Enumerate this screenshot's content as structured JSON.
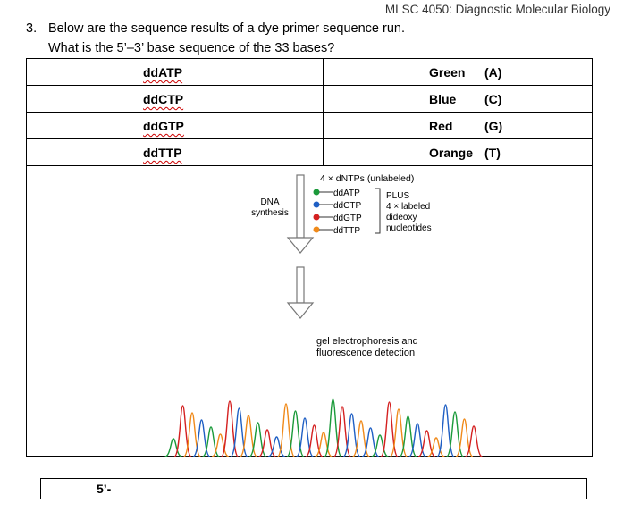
{
  "header": "MLSC 4050: Diagnostic Molecular Biology",
  "question": {
    "number": "3.",
    "line1": "Below are the sequence results of a dye primer sequence run.",
    "line2": "What is the 5’–3’ base sequence of the 33 bases?"
  },
  "table": {
    "rows": [
      {
        "nucleotide": "ddATP",
        "color": "Green",
        "base": "(A)"
      },
      {
        "nucleotide": "ddCTP",
        "color": "Blue",
        "base": "(C)"
      },
      {
        "nucleotide": "ddGTP",
        "color": "Red",
        "base": "(G)"
      },
      {
        "nucleotide": "ddTTP",
        "color": "Orange",
        "base": "(T)"
      }
    ]
  },
  "figure": {
    "dntps": "4 × dNTPs (unlabeled)",
    "dna_synthesis_1": "DNA",
    "dna_synthesis_2": "synthesis",
    "dd_labels": [
      "ddATP",
      "ddCTP",
      "ddGTP",
      "ddTTP"
    ],
    "plus_1": "PLUS",
    "plus_2": "4 × labeled",
    "plus_3": "dideoxy",
    "plus_4": "nucleotides",
    "gel_1": "gel electrophoresis and",
    "gel_2": "fluorescence detection",
    "dot_colors": [
      "#1a9a3a",
      "#1f5fc4",
      "#d42020",
      "#f08a1a"
    ]
  },
  "answer": {
    "prefix": "5’-"
  }
}
